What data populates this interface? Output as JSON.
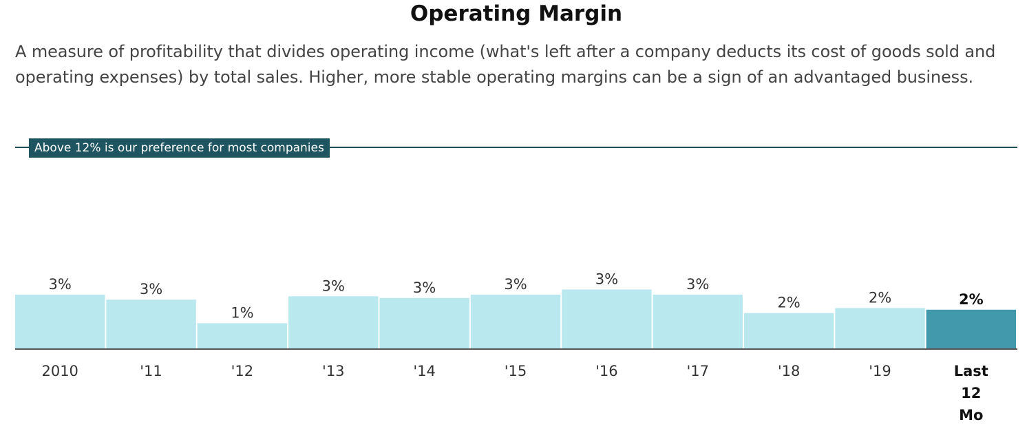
{
  "title": "Operating Margin",
  "description": "A measure of profitability that divides operating income (what's left after a company deducts its cost of goods sold and operating expenses) by total sales. Higher, more stable operating margins can be a sign of an advantaged business.",
  "preference_label": "Above 12% is our preference for most companies",
  "colors": {
    "bar": "#b9e8ef",
    "bar_highlight": "#4299ab",
    "preference_line": "#1e4e55",
    "axis": "#555555"
  },
  "chart_data": {
    "type": "bar",
    "title": "Operating Margin",
    "xlabel": "",
    "ylabel": "",
    "categories": [
      "2010",
      "'11",
      "'12",
      "'13",
      "'14",
      "'15",
      "'16",
      "'17",
      "'18",
      "'19",
      "Last 12 Mo"
    ],
    "values": [
      3.2,
      2.9,
      1.5,
      3.1,
      3.0,
      3.2,
      3.5,
      3.2,
      2.1,
      2.4,
      2.3
    ],
    "data_labels": [
      "3%",
      "3%",
      "1%",
      "3%",
      "3%",
      "3%",
      "3%",
      "3%",
      "2%",
      "2%",
      "2%"
    ],
    "highlight_index": 10,
    "reference_line": {
      "value": 12,
      "label": "Above 12% is our preference for most companies"
    },
    "ylim": [
      0,
      13.2
    ],
    "grid": false,
    "legend": "none"
  }
}
